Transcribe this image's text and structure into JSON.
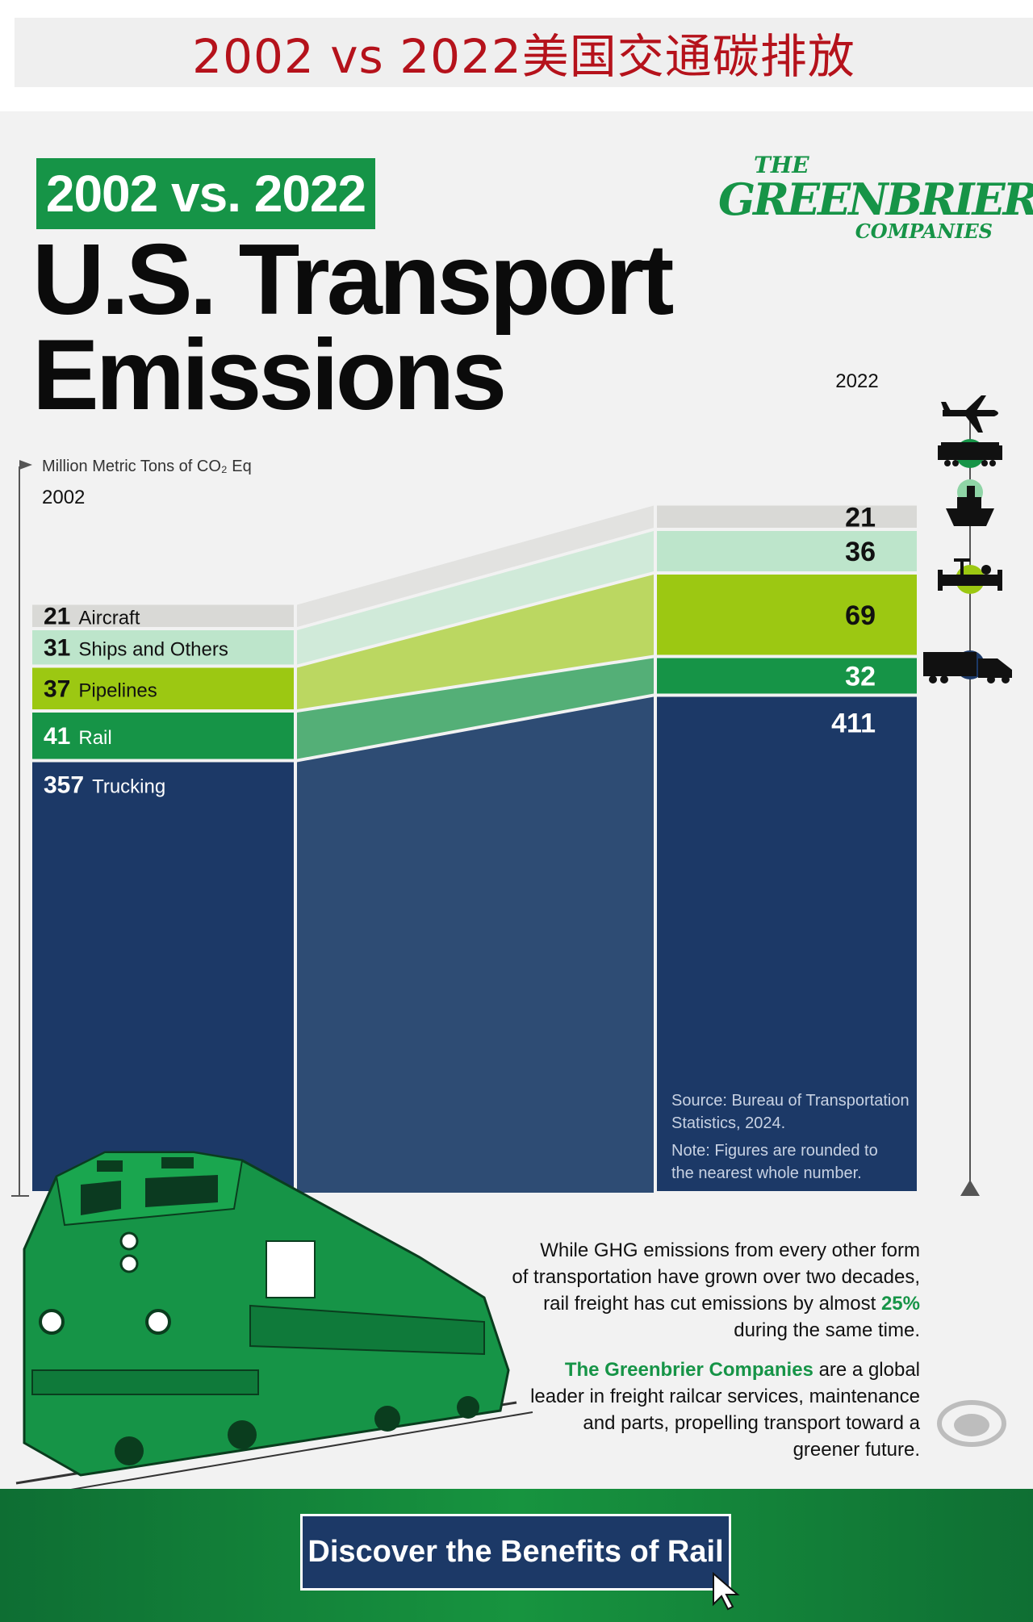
{
  "header": {
    "title": "2002 vs 2022美国交通碳排放"
  },
  "infographic": {
    "badge": "2002 vs. 2022",
    "title_line1": "U.S. Transport",
    "title_line2": "Emissions",
    "logo": {
      "line1": "THE",
      "line2": "GREENBRIER",
      "line3": "COMPANIES"
    },
    "source": [
      "Source: Bureau of Transportation",
      "Statistics, 2024."
    ],
    "note": [
      "Note: Figures are rounded to",
      "the nearest whole number."
    ],
    "paragraph1": {
      "lines": [
        "While GHG emissions from every other form",
        "of transportation have grown over two decades,"
      ],
      "line3_prefix": "rail freight has cut emissions by almost ",
      "highlight": "25%",
      "line4": "during the same time."
    },
    "paragraph2": {
      "company": "The Greenbrier Companies",
      "line1_suffix": " are a global",
      "lines": [
        "leader in freight railcar services, maintenance",
        "and parts, propelling transport toward a",
        "greener future."
      ]
    },
    "cta_label": "Discover the Benefits of Rail"
  },
  "colors": {
    "brand_green": "#169447",
    "navy": "#1c3967",
    "aircraft": "#d9d9d6",
    "ships": "#bde5cb",
    "pipelines": "#9cc812",
    "rail": "#169447",
    "trucking": "#1c3967",
    "title_red": "#b5121b"
  },
  "chart_data": {
    "type": "stacked-bar",
    "unit_label": "Million Metric Tons of CO₂ Eq",
    "years": [
      "2002",
      "2022"
    ],
    "series": [
      {
        "name": "Aircraft",
        "key": "aircraft",
        "icon": "airplane-icon",
        "values": [
          21,
          21
        ]
      },
      {
        "name": "Ships and Others",
        "key": "ships",
        "icon": "ship-icon",
        "values": [
          31,
          36
        ]
      },
      {
        "name": "Pipelines",
        "key": "pipelines",
        "icon": "pipeline-icon",
        "values": [
          37,
          69
        ]
      },
      {
        "name": "Rail",
        "key": "rail",
        "icon": "train-icon",
        "values": [
          41,
          32
        ]
      },
      {
        "name": "Trucking",
        "key": "trucking",
        "icon": "truck-icon",
        "values": [
          357,
          411
        ]
      }
    ]
  }
}
